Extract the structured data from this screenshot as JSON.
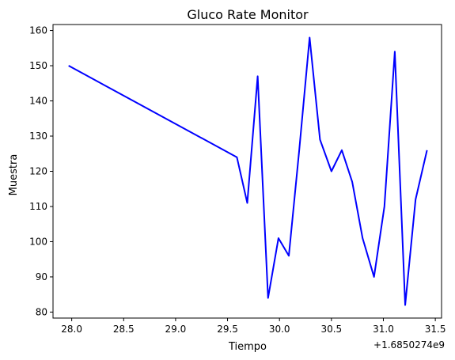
{
  "chart_data": {
    "type": "line",
    "title": "Gluco Rate Monitor",
    "xlabel": "Tiempo",
    "ylabel": "Muestra",
    "x_offset_label": "+1.6850274e9",
    "xlim": [
      27.82,
      31.56
    ],
    "ylim": [
      78.3,
      161.7
    ],
    "grid": false,
    "x_ticks": [
      28.0,
      28.5,
      29.0,
      29.5,
      30.0,
      30.5,
      31.0,
      31.5
    ],
    "x_tick_labels": [
      "28.0",
      "28.5",
      "29.0",
      "29.5",
      "30.0",
      "30.5",
      "31.0",
      "31.5"
    ],
    "y_ticks": [
      80,
      90,
      100,
      110,
      120,
      130,
      140,
      150,
      160
    ],
    "y_tick_labels": [
      "80",
      "90",
      "100",
      "110",
      "120",
      "130",
      "140",
      "150",
      "160"
    ],
    "series": [
      {
        "color": "#0000ff",
        "x": [
          27.97,
          29.59,
          29.69,
          29.79,
          29.89,
          29.99,
          30.09,
          30.19,
          30.29,
          30.39,
          30.5,
          30.6,
          30.7,
          30.8,
          30.91,
          31.01,
          31.11,
          31.21,
          31.31,
          31.42
        ],
        "y": [
          150,
          124,
          111,
          147,
          84,
          101,
          96,
          126,
          158,
          129,
          120,
          126,
          117,
          101,
          90,
          110,
          154,
          82,
          112,
          126
        ]
      }
    ]
  }
}
